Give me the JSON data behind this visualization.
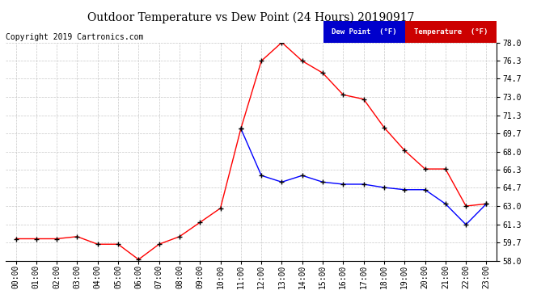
{
  "title": "Outdoor Temperature vs Dew Point (24 Hours) 20190917",
  "copyright": "Copyright 2019 Cartronics.com",
  "x_labels": [
    "00:00",
    "01:00",
    "02:00",
    "03:00",
    "04:00",
    "05:00",
    "06:00",
    "07:00",
    "08:00",
    "09:00",
    "10:00",
    "11:00",
    "12:00",
    "13:00",
    "14:00",
    "15:00",
    "16:00",
    "17:00",
    "18:00",
    "19:00",
    "20:00",
    "21:00",
    "22:00",
    "23:00"
  ],
  "temperature": [
    60.0,
    60.0,
    60.0,
    60.2,
    59.5,
    59.5,
    58.1,
    59.5,
    60.2,
    61.5,
    62.8,
    70.1,
    76.3,
    78.0,
    76.3,
    75.2,
    73.2,
    72.8,
    70.2,
    68.1,
    66.4,
    66.4,
    63.0,
    63.2
  ],
  "dew_point": [
    null,
    null,
    null,
    null,
    null,
    null,
    null,
    null,
    null,
    null,
    null,
    70.1,
    65.8,
    65.2,
    65.8,
    65.2,
    65.0,
    65.0,
    64.7,
    64.5,
    64.5,
    63.2,
    61.3,
    63.2
  ],
  "temp_color": "#ff0000",
  "dew_color": "#0000ff",
  "bg_color": "#ffffff",
  "grid_color": "#c8c8c8",
  "ylim_min": 58.0,
  "ylim_max": 78.0,
  "yticks": [
    58.0,
    59.7,
    61.3,
    63.0,
    64.7,
    66.3,
    68.0,
    69.7,
    71.3,
    73.0,
    74.7,
    76.3,
    78.0
  ],
  "legend_dew_bg": "#0000cc",
  "legend_temp_bg": "#cc0000",
  "legend_text_color": "#ffffff",
  "title_fontsize": 10,
  "tick_fontsize": 7,
  "copyright_fontsize": 7
}
